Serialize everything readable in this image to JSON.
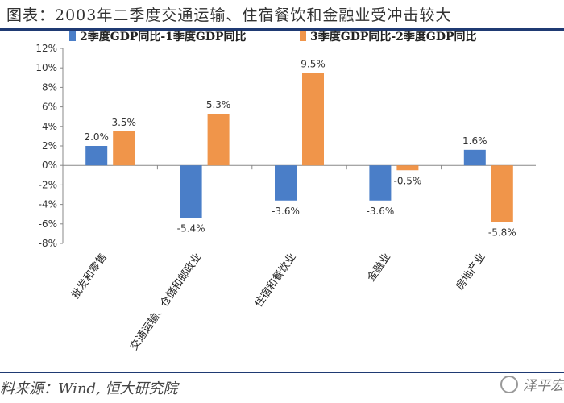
{
  "header": {
    "title": "图表：2003年二季度交通运输、住宿餐饮和金融业受冲击较大"
  },
  "footer": {
    "source": "料来源：Wind, 恒大研究院",
    "watermark": "泽平宏"
  },
  "chart_data": {
    "type": "bar",
    "title": "",
    "xlabel": "",
    "ylabel": "",
    "ylim": [
      -8,
      12
    ],
    "yticks": [
      12,
      10,
      8,
      6,
      4,
      2,
      0,
      -2,
      -4,
      -6,
      -8
    ],
    "ytick_labels": [
      "12%",
      "10%",
      "8%",
      "6%",
      "4%",
      "2%",
      "0%",
      "-2%",
      "-4%",
      "-6%",
      "-8%"
    ],
    "grid": false,
    "legend_position": "top",
    "categories": [
      "批发和零售",
      "交通运输、仓储和邮政业",
      "住宿和餐饮业",
      "金融业",
      "房地产业"
    ],
    "series": [
      {
        "name": "2季度GDP同比-1季度GDP同比",
        "color": "#4a7ec8",
        "values": [
          2.0,
          -5.4,
          -3.6,
          -3.6,
          1.6
        ],
        "labels": [
          "2.0%",
          "-5.4%",
          "-3.6%",
          "-3.6%",
          "1.6%"
        ]
      },
      {
        "name": "3季度GDP同比-2季度GDP同比",
        "color": "#f0954a",
        "values": [
          3.5,
          5.3,
          9.5,
          -0.5,
          -5.8
        ],
        "labels": [
          "3.5%",
          "5.3%",
          "9.5%",
          "-0.5%",
          "-5.8%"
        ]
      }
    ]
  }
}
